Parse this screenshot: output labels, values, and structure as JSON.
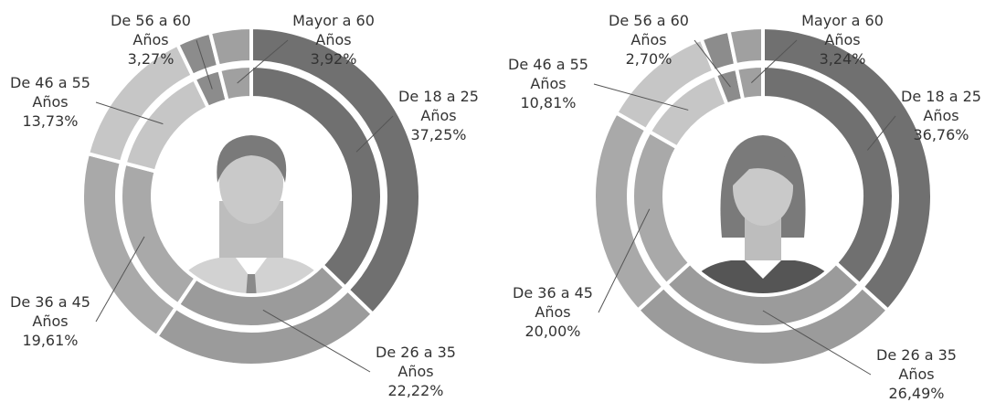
{
  "chart_data": [
    {
      "type": "donut",
      "categories": [
        "De 18 a 25 Años",
        "De 26 a 35 Años",
        "De 36 a 45 Años",
        "De 46 a 55 Años",
        "De 56 a 60 Años",
        "Mayor a 60 Años"
      ],
      "values": [
        37.25,
        22.22,
        19.61,
        13.73,
        3.27,
        3.92
      ],
      "value_labels": [
        "37,25%",
        "22,22%",
        "19,61%",
        "13,73%",
        "3,27%",
        "3,92%"
      ],
      "colors": [
        "#707070",
        "#9b9b9b",
        "#a9a9a9",
        "#c6c6c6",
        "#8c8c8c",
        "#a0a0a0"
      ]
    },
    {
      "type": "donut",
      "categories": [
        "De 18 a 25 Años",
        "De 26 a 35 Años",
        "De 36 a 45 Años",
        "De 46 a 55 Años",
        "De 56 a 60 Años",
        "Mayor a 60 Años"
      ],
      "values": [
        36.76,
        26.49,
        20.0,
        10.81,
        2.7,
        3.24
      ],
      "value_labels": [
        "36,76%",
        "26,49%",
        "20,00%",
        "10,81%",
        "2,70%",
        "3,24%"
      ],
      "colors": [
        "#707070",
        "#9b9b9b",
        "#a9a9a9",
        "#c6c6c6",
        "#8c8c8c",
        "#a0a0a0"
      ]
    }
  ]
}
